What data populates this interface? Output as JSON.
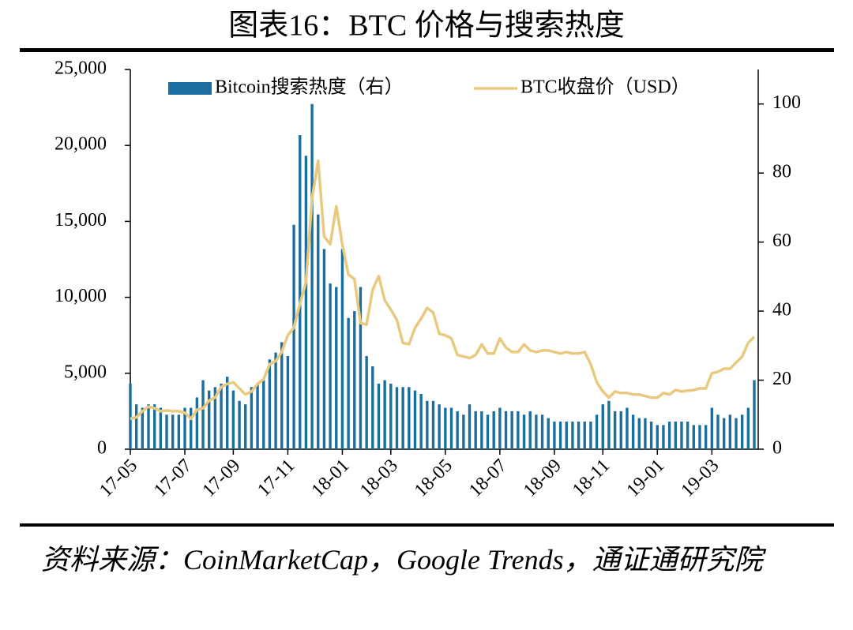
{
  "chart_data": {
    "type": "bar-line",
    "title": "图表16：BTC 价格与搜索热度",
    "source": "资料来源：CoinMarketCap，Google Trends，通证通研究院",
    "categories": [
      "17-05",
      null,
      null,
      null,
      null,
      null,
      null,
      null,
      null,
      "17-07",
      null,
      null,
      null,
      null,
      null,
      null,
      null,
      "17-09",
      null,
      null,
      null,
      null,
      null,
      null,
      null,
      null,
      "17-11",
      null,
      null,
      null,
      null,
      null,
      null,
      null,
      null,
      "18-01",
      null,
      null,
      null,
      null,
      null,
      null,
      null,
      "18-03",
      null,
      null,
      null,
      null,
      null,
      null,
      null,
      null,
      "18-05",
      null,
      null,
      null,
      null,
      null,
      null,
      null,
      null,
      "18-07",
      null,
      null,
      null,
      null,
      null,
      null,
      null,
      null,
      "18-09",
      null,
      null,
      null,
      null,
      null,
      null,
      null,
      "18-11",
      null,
      null,
      null,
      null,
      null,
      null,
      null,
      null,
      "19-01",
      null,
      null,
      null,
      null,
      null,
      null,
      null,
      null,
      "19-03",
      null,
      null,
      null,
      null,
      null,
      null,
      null
    ],
    "series": [
      {
        "name": "Bitcoin搜索热度（右）",
        "kind": "bar",
        "axis": "y2",
        "color": "#1b6e9e",
        "values": [
          19,
          13,
          12,
          13,
          13,
          12,
          10,
          10,
          10,
          12,
          12,
          15,
          20,
          17,
          18,
          19,
          21,
          17,
          14,
          13,
          18,
          19,
          20,
          26,
          28,
          31,
          27,
          65,
          91,
          85,
          100,
          68,
          58,
          48,
          47,
          58,
          38,
          40,
          47,
          27,
          24,
          19,
          20,
          19,
          18,
          18,
          18,
          17,
          16,
          14,
          14,
          13,
          12,
          12,
          11,
          10,
          13,
          11,
          11,
          10,
          11,
          12,
          11,
          11,
          11,
          10,
          11,
          10,
          10,
          9,
          8,
          8,
          8,
          8,
          8,
          8,
          8,
          10,
          13,
          14,
          11,
          11,
          12,
          10,
          9,
          9,
          8,
          7,
          7,
          8,
          8,
          8,
          8,
          7,
          7,
          7,
          12,
          10,
          9,
          10,
          9,
          10,
          12,
          20
        ]
      },
      {
        "name": "BTC收盘价（USD）",
        "kind": "line",
        "axis": "y",
        "color": "#e9c97f",
        "values": [
          2000,
          2100,
          2500,
          2800,
          2700,
          2500,
          2550,
          2500,
          2500,
          2400,
          2000,
          2600,
          2700,
          3200,
          3400,
          4100,
          4300,
          4400,
          4000,
          3600,
          3800,
          4300,
          4600,
          5600,
          5800,
          6400,
          7500,
          8000,
          9600,
          11000,
          16500,
          19000,
          14000,
          13500,
          16000,
          13500,
          11500,
          11200,
          8300,
          8200,
          10500,
          11400,
          9800,
          9200,
          8500,
          7000,
          6900,
          8000,
          8600,
          9300,
          9000,
          7600,
          7500,
          7300,
          6200,
          6100,
          6000,
          6200,
          6900,
          6300,
          6300,
          7300,
          6700,
          6400,
          6400,
          6900,
          6500,
          6400,
          6500,
          6500,
          6400,
          6300,
          6400,
          6300,
          6300,
          6400,
          5600,
          4400,
          3800,
          3400,
          3800,
          3700,
          3700,
          3600,
          3600,
          3500,
          3400,
          3400,
          3700,
          3600,
          3900,
          3800,
          3850,
          3900,
          4000,
          4000,
          5000,
          5100,
          5300,
          5300,
          5700,
          6100,
          7000,
          7400
        ]
      }
    ],
    "ylim": [
      0,
      25000
    ],
    "yticks": [
      0,
      {
        "value": 5000,
        "label": "5,000"
      },
      {
        "value": 10000,
        "label": "10,000"
      },
      {
        "value": 15000,
        "label": "15,000"
      },
      {
        "value": 20000,
        "label": "20,000"
      },
      {
        "value": 25000,
        "label": "25,000"
      }
    ],
    "y2lim": [
      0,
      110
    ],
    "y2ticks": [
      0,
      20,
      40,
      60,
      80,
      100
    ],
    "legend": "top"
  }
}
